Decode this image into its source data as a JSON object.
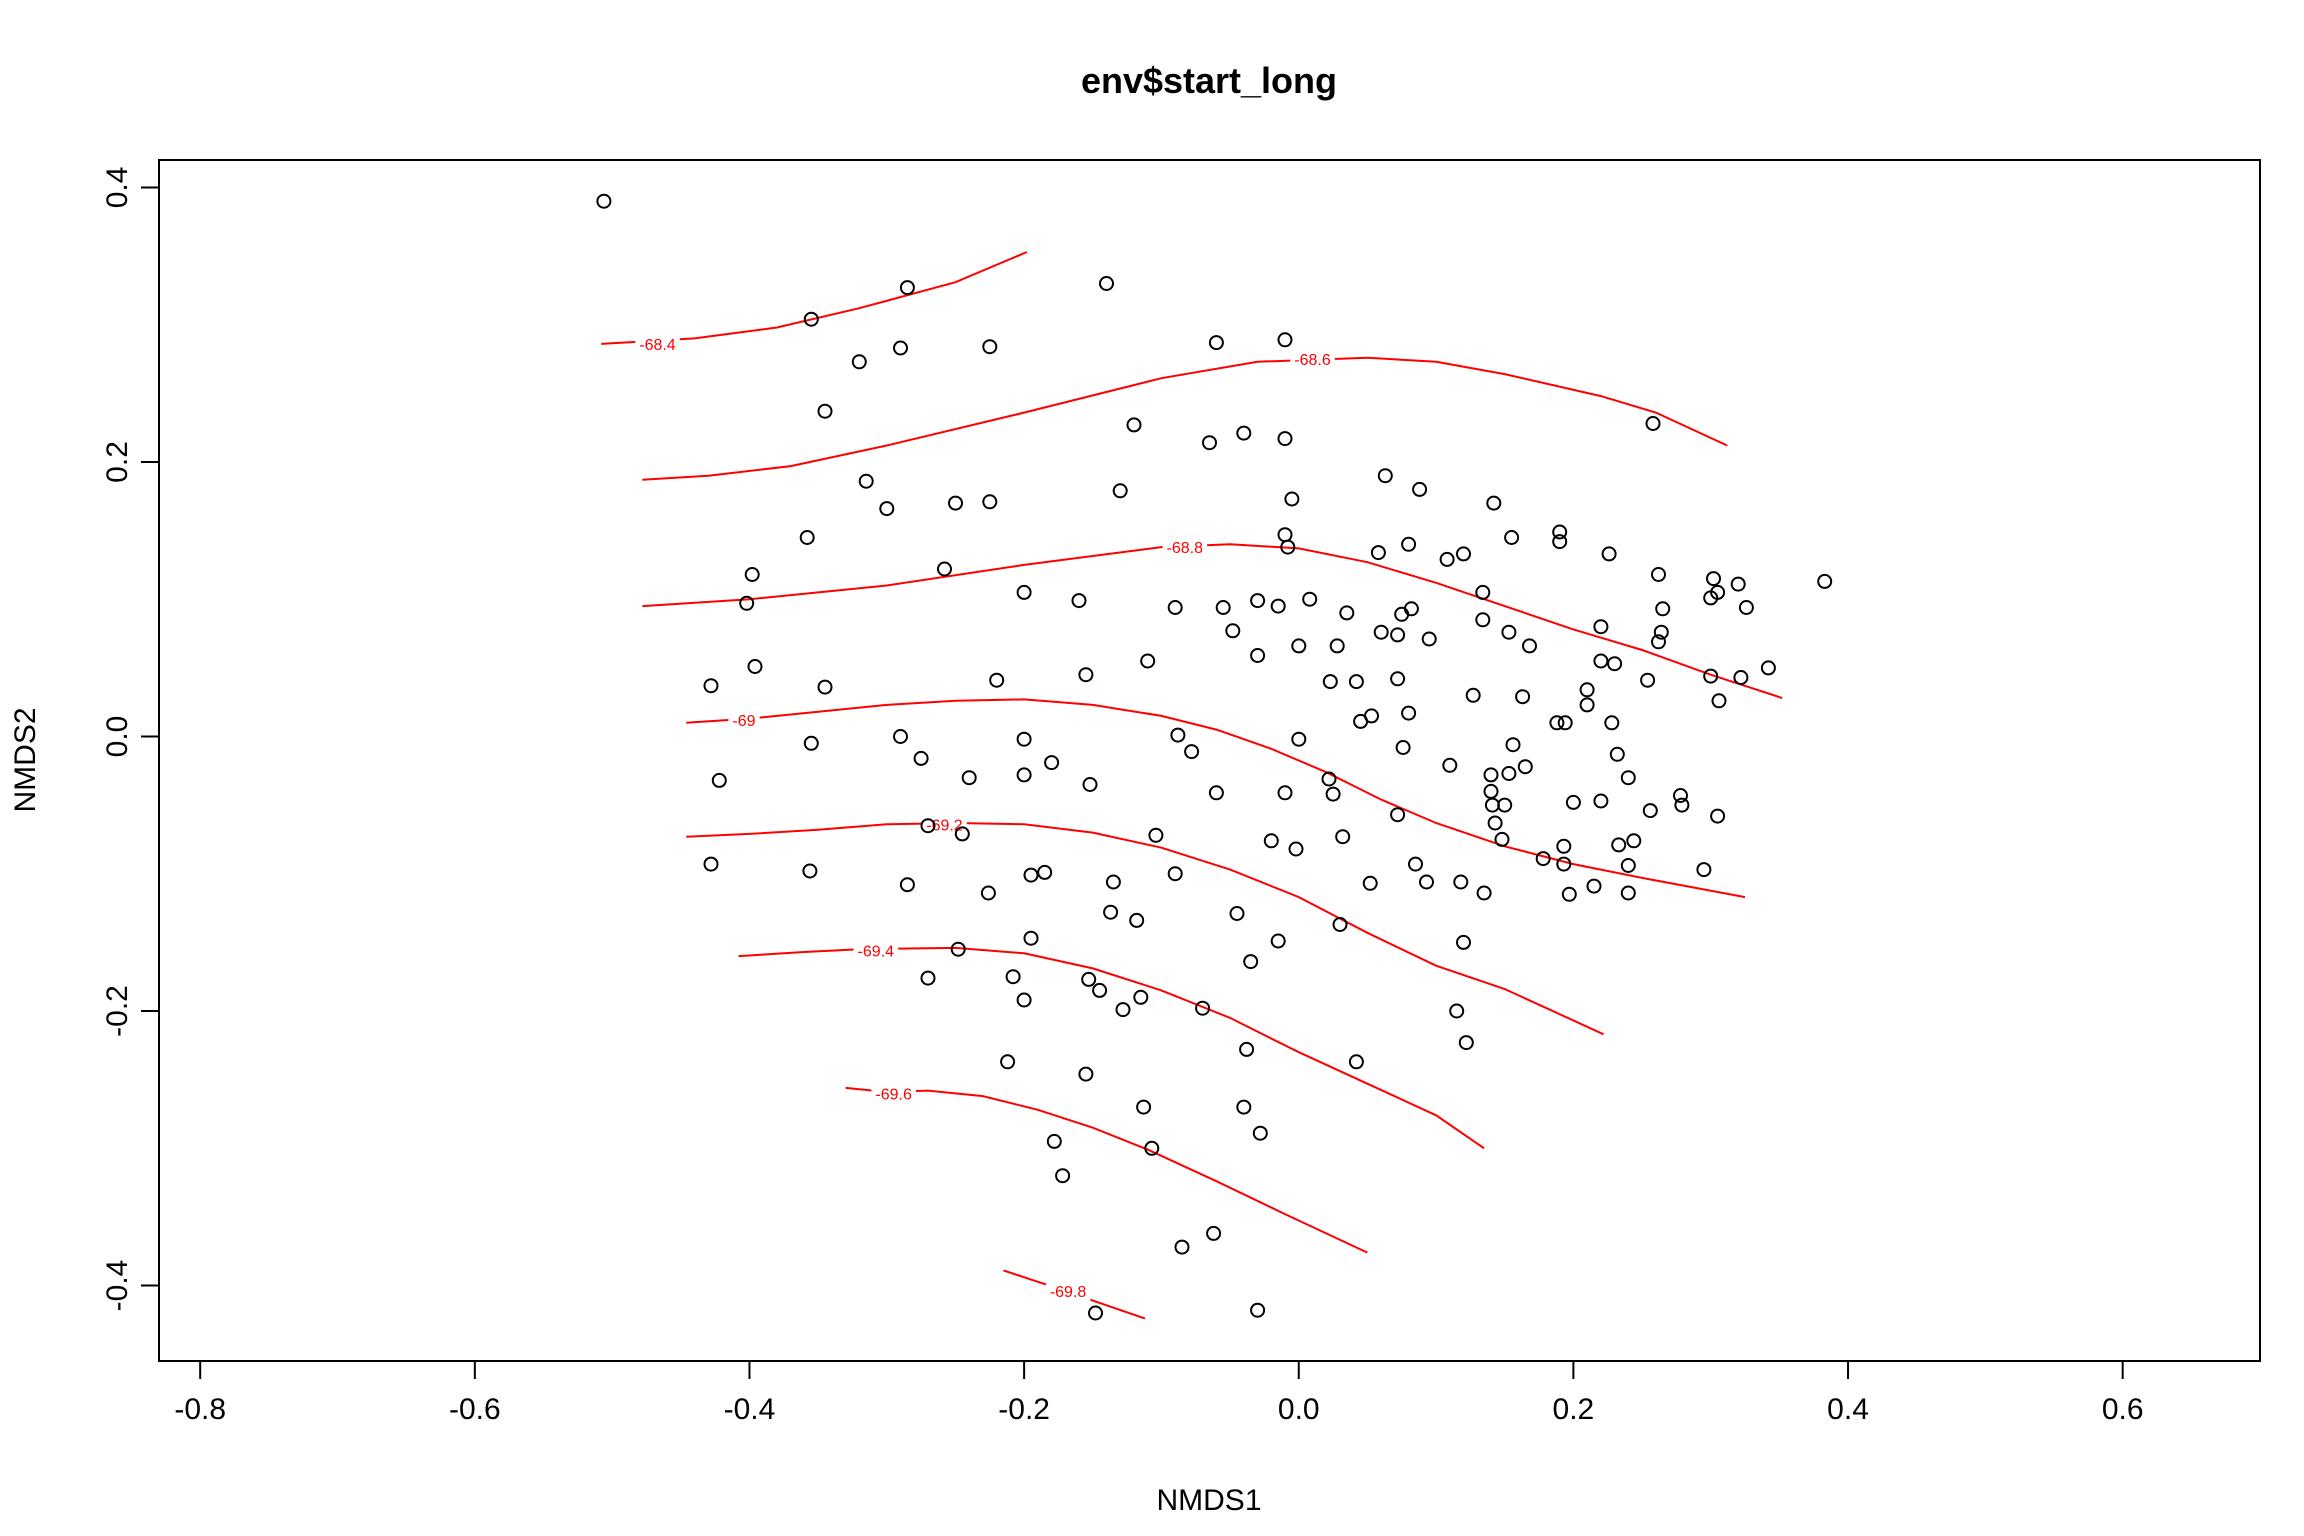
{
  "chart_data": {
    "type": "scatter",
    "title": "env$start_long",
    "xlabel": "NMDS1",
    "ylabel": "NMDS2",
    "xlim": [
      -0.83,
      0.7
    ],
    "ylim": [
      -0.455,
      0.42
    ],
    "x_ticks": [
      -0.8,
      -0.6,
      -0.4,
      -0.2,
      0.0,
      0.2,
      0.4,
      0.6
    ],
    "x_tick_labels": [
      "-0.8",
      "-0.6",
      "-0.4",
      "-0.2",
      "0.0",
      "0.2",
      "0.4",
      "0.6"
    ],
    "y_ticks": [
      -0.4,
      -0.2,
      0.0,
      0.2,
      0.4
    ],
    "y_tick_labels": [
      "-0.4",
      "-0.2",
      "0.0",
      "0.2",
      "0.4"
    ],
    "grid": false,
    "legend": "none",
    "point_color": "#000000",
    "contour_color": "#ff0000",
    "points": [
      [
        -0.506,
        0.39
      ],
      [
        -0.14,
        0.33
      ],
      [
        -0.285,
        0.327
      ],
      [
        -0.355,
        0.304
      ],
      [
        -0.32,
        0.273
      ],
      [
        -0.29,
        0.283
      ],
      [
        -0.225,
        0.284
      ],
      [
        -0.06,
        0.287
      ],
      [
        -0.01,
        0.289
      ],
      [
        -0.345,
        0.237
      ],
      [
        -0.12,
        0.227
      ],
      [
        -0.04,
        0.221
      ],
      [
        -0.01,
        0.217
      ],
      [
        -0.065,
        0.214
      ],
      [
        0.258,
        0.228
      ],
      [
        -0.315,
        0.186
      ],
      [
        -0.3,
        0.166
      ],
      [
        -0.25,
        0.17
      ],
      [
        -0.225,
        0.171
      ],
      [
        -0.13,
        0.179
      ],
      [
        -0.005,
        0.173
      ],
      [
        0.063,
        0.19
      ],
      [
        0.088,
        0.18
      ],
      [
        0.142,
        0.17
      ],
      [
        -0.358,
        0.145
      ],
      [
        -0.01,
        0.147
      ],
      [
        -0.008,
        0.138
      ],
      [
        0.058,
        0.134
      ],
      [
        0.08,
        0.14
      ],
      [
        0.108,
        0.129
      ],
      [
        0.12,
        0.133
      ],
      [
        0.155,
        0.145
      ],
      [
        0.19,
        0.149
      ],
      [
        0.19,
        0.142
      ],
      [
        0.226,
        0.133
      ],
      [
        -0.398,
        0.118
      ],
      [
        -0.258,
        0.122
      ],
      [
        0.262,
        0.118
      ],
      [
        0.302,
        0.115
      ],
      [
        0.32,
        0.111
      ],
      [
        0.383,
        0.113
      ],
      [
        -0.402,
        0.097
      ],
      [
        -0.2,
        0.105
      ],
      [
        -0.16,
        0.099
      ],
      [
        -0.09,
        0.094
      ],
      [
        -0.055,
        0.094
      ],
      [
        -0.03,
        0.099
      ],
      [
        -0.015,
        0.095
      ],
      [
        0.008,
        0.1
      ],
      [
        0.035,
        0.09
      ],
      [
        0.075,
        0.089
      ],
      [
        0.082,
        0.093
      ],
      [
        0.134,
        0.105
      ],
      [
        0.3,
        0.101
      ],
      [
        0.305,
        0.105
      ],
      [
        0.326,
        0.094
      ],
      [
        0.265,
        0.093
      ],
      [
        0.134,
        0.085
      ],
      [
        -0.048,
        0.077
      ],
      [
        -0.03,
        0.059
      ],
      [
        0.0,
        0.066
      ],
      [
        0.028,
        0.066
      ],
      [
        0.06,
        0.076
      ],
      [
        0.072,
        0.074
      ],
      [
        0.095,
        0.071
      ],
      [
        0.153,
        0.076
      ],
      [
        0.168,
        0.066
      ],
      [
        0.22,
        0.08
      ],
      [
        0.264,
        0.076
      ],
      [
        0.262,
        0.069
      ],
      [
        -0.396,
        0.051
      ],
      [
        -0.11,
        0.055
      ],
      [
        -0.155,
        0.045
      ],
      [
        0.22,
        0.055
      ],
      [
        0.23,
        0.053
      ],
      [
        0.342,
        0.05
      ],
      [
        -0.428,
        0.037
      ],
      [
        -0.345,
        0.036
      ],
      [
        -0.22,
        0.041
      ],
      [
        0.023,
        0.04
      ],
      [
        0.042,
        0.04
      ],
      [
        0.072,
        0.042
      ],
      [
        0.254,
        0.041
      ],
      [
        0.3,
        0.044
      ],
      [
        0.322,
        0.043
      ],
      [
        0.21,
        0.034
      ],
      [
        0.306,
        0.026
      ],
      [
        0.127,
        0.03
      ],
      [
        0.163,
        0.029
      ],
      [
        0.21,
        0.023
      ],
      [
        0.045,
        0.011
      ],
      [
        0.053,
        0.015
      ],
      [
        0.08,
        0.017
      ],
      [
        0.188,
        0.01
      ],
      [
        0.194,
        0.01
      ],
      [
        0.228,
        0.01
      ],
      [
        -0.355,
        -0.005
      ],
      [
        -0.29,
        0.0
      ],
      [
        -0.2,
        -0.002
      ],
      [
        -0.088,
        0.001
      ],
      [
        -0.078,
        -0.011
      ],
      [
        0.0,
        -0.002
      ],
      [
        0.076,
        -0.008
      ],
      [
        0.156,
        -0.006
      ],
      [
        -0.422,
        -0.032
      ],
      [
        -0.275,
        -0.016
      ],
      [
        -0.24,
        -0.03
      ],
      [
        -0.2,
        -0.028
      ],
      [
        -0.18,
        -0.019
      ],
      [
        -0.152,
        -0.035
      ],
      [
        -0.06,
        -0.041
      ],
      [
        -0.01,
        -0.041
      ],
      [
        0.022,
        -0.031
      ],
      [
        0.025,
        -0.042
      ],
      [
        0.11,
        -0.021
      ],
      [
        0.14,
        -0.028
      ],
      [
        0.153,
        -0.027
      ],
      [
        0.165,
        -0.022
      ],
      [
        0.232,
        -0.013
      ],
      [
        0.24,
        -0.03
      ],
      [
        0.256,
        -0.054
      ],
      [
        0.278,
        -0.043
      ],
      [
        0.14,
        -0.04
      ],
      [
        0.141,
        -0.05
      ],
      [
        0.15,
        -0.05
      ],
      [
        0.2,
        -0.048
      ],
      [
        0.22,
        -0.047
      ],
      [
        0.143,
        -0.063
      ],
      [
        0.148,
        -0.075
      ],
      [
        0.072,
        -0.057
      ],
      [
        0.305,
        -0.058
      ],
      [
        0.279,
        -0.05
      ],
      [
        -0.27,
        -0.065
      ],
      [
        -0.245,
        -0.071
      ],
      [
        -0.104,
        -0.072
      ],
      [
        -0.02,
        -0.076
      ],
      [
        -0.002,
        -0.082
      ],
      [
        0.032,
        -0.073
      ],
      [
        0.193,
        -0.08
      ],
      [
        0.233,
        -0.079
      ],
      [
        0.244,
        -0.076
      ],
      [
        -0.428,
        -0.093
      ],
      [
        -0.356,
        -0.098
      ],
      [
        -0.195,
        -0.101
      ],
      [
        -0.185,
        -0.099
      ],
      [
        -0.09,
        -0.1
      ],
      [
        0.085,
        -0.093
      ],
      [
        0.178,
        -0.089
      ],
      [
        0.193,
        -0.093
      ],
      [
        -0.285,
        -0.108
      ],
      [
        -0.226,
        -0.114
      ],
      [
        -0.135,
        -0.106
      ],
      [
        0.052,
        -0.107
      ],
      [
        0.093,
        -0.106
      ],
      [
        0.118,
        -0.106
      ],
      [
        0.135,
        -0.114
      ],
      [
        0.197,
        -0.115
      ],
      [
        0.215,
        -0.109
      ],
      [
        0.24,
        -0.094
      ],
      [
        0.24,
        -0.114
      ],
      [
        0.295,
        -0.097
      ],
      [
        -0.137,
        -0.128
      ],
      [
        -0.118,
        -0.134
      ],
      [
        -0.045,
        -0.129
      ],
      [
        0.03,
        -0.137
      ],
      [
        -0.195,
        -0.147
      ],
      [
        -0.248,
        -0.155
      ],
      [
        -0.015,
        -0.149
      ],
      [
        0.12,
        -0.15
      ],
      [
        -0.27,
        -0.176
      ],
      [
        -0.208,
        -0.175
      ],
      [
        -0.2,
        -0.192
      ],
      [
        -0.153,
        -0.177
      ],
      [
        -0.145,
        -0.185
      ],
      [
        -0.128,
        -0.199
      ],
      [
        -0.115,
        -0.19
      ],
      [
        -0.07,
        -0.198
      ],
      [
        -0.035,
        -0.164
      ],
      [
        0.115,
        -0.2
      ],
      [
        -0.212,
        -0.237
      ],
      [
        -0.155,
        -0.246
      ],
      [
        -0.038,
        -0.228
      ],
      [
        0.042,
        -0.237
      ],
      [
        0.122,
        -0.223
      ],
      [
        -0.113,
        -0.27
      ],
      [
        -0.04,
        -0.27
      ],
      [
        -0.178,
        -0.295
      ],
      [
        -0.107,
        -0.3
      ],
      [
        -0.028,
        -0.289
      ],
      [
        -0.172,
        -0.32
      ],
      [
        -0.085,
        -0.372
      ],
      [
        -0.062,
        -0.362
      ],
      [
        -0.148,
        -0.42
      ],
      [
        -0.03,
        -0.418
      ]
    ],
    "contours": [
      {
        "level": "-68.4",
        "label_at": [
          -0.467,
          0.286
        ],
        "line": [
          [
            -0.508,
            0.286
          ],
          [
            -0.44,
            0.29
          ],
          [
            -0.38,
            0.298
          ],
          [
            -0.32,
            0.312
          ],
          [
            -0.25,
            0.331
          ],
          [
            -0.198,
            0.353
          ]
        ]
      },
      {
        "level": "-68.6",
        "label_at": [
          0.01,
          0.275
        ],
        "line": [
          [
            -0.478,
            0.187
          ],
          [
            -0.43,
            0.19
          ],
          [
            -0.37,
            0.197
          ],
          [
            -0.3,
            0.212
          ],
          [
            -0.2,
            0.236
          ],
          [
            -0.1,
            0.261
          ],
          [
            -0.03,
            0.273
          ],
          [
            0.05,
            0.276
          ],
          [
            0.1,
            0.273
          ],
          [
            0.15,
            0.264
          ],
          [
            0.22,
            0.248
          ],
          [
            0.26,
            0.236
          ],
          [
            0.312,
            0.212
          ]
        ]
      },
      {
        "level": "-68.8",
        "label_at": [
          -0.083,
          0.138
        ],
        "line": [
          [
            -0.478,
            0.095
          ],
          [
            -0.4,
            0.1
          ],
          [
            -0.3,
            0.11
          ],
          [
            -0.2,
            0.125
          ],
          [
            -0.1,
            0.138
          ],
          [
            -0.05,
            0.14
          ],
          [
            0.0,
            0.137
          ],
          [
            0.05,
            0.127
          ],
          [
            0.1,
            0.112
          ],
          [
            0.15,
            0.095
          ],
          [
            0.2,
            0.078
          ],
          [
            0.25,
            0.063
          ],
          [
            0.3,
            0.045
          ],
          [
            0.352,
            0.028
          ]
        ]
      },
      {
        "level": "-69",
        "label_at": [
          -0.404,
          0.012
        ],
        "line": [
          [
            -0.446,
            0.01
          ],
          [
            -0.4,
            0.013
          ],
          [
            -0.35,
            0.018
          ],
          [
            -0.3,
            0.023
          ],
          [
            -0.25,
            0.026
          ],
          [
            -0.2,
            0.027
          ],
          [
            -0.15,
            0.023
          ],
          [
            -0.1,
            0.015
          ],
          [
            -0.06,
            0.005
          ],
          [
            -0.02,
            -0.009
          ],
          [
            0.02,
            -0.026
          ],
          [
            0.06,
            -0.046
          ],
          [
            0.1,
            -0.063
          ],
          [
            0.15,
            -0.08
          ],
          [
            0.2,
            -0.093
          ],
          [
            0.25,
            -0.103
          ],
          [
            0.325,
            -0.117
          ]
        ]
      },
      {
        "level": "-69.2",
        "label_at": [
          -0.258,
          -0.064
        ],
        "line": [
          [
            -0.446,
            -0.073
          ],
          [
            -0.4,
            -0.071
          ],
          [
            -0.35,
            -0.068
          ],
          [
            -0.3,
            -0.064
          ],
          [
            -0.25,
            -0.063
          ],
          [
            -0.2,
            -0.064
          ],
          [
            -0.15,
            -0.07
          ],
          [
            -0.1,
            -0.081
          ],
          [
            -0.05,
            -0.097
          ],
          [
            0.0,
            -0.117
          ],
          [
            0.05,
            -0.143
          ],
          [
            0.1,
            -0.167
          ],
          [
            0.15,
            -0.184
          ],
          [
            0.222,
            -0.217
          ]
        ]
      },
      {
        "level": "-69.4",
        "label_at": [
          -0.308,
          -0.156
        ],
        "line": [
          [
            -0.408,
            -0.16
          ],
          [
            -0.36,
            -0.157
          ],
          [
            -0.32,
            -0.155
          ],
          [
            -0.25,
            -0.154
          ],
          [
            -0.2,
            -0.158
          ],
          [
            -0.15,
            -0.169
          ],
          [
            -0.1,
            -0.185
          ],
          [
            -0.05,
            -0.205
          ],
          [
            0.0,
            -0.23
          ],
          [
            0.05,
            -0.253
          ],
          [
            0.1,
            -0.276
          ],
          [
            0.135,
            -0.3
          ]
        ]
      },
      {
        "level": "-69.6",
        "label_at": [
          -0.295,
          -0.26
        ],
        "line": [
          [
            -0.33,
            -0.256
          ],
          [
            -0.3,
            -0.259
          ],
          [
            -0.27,
            -0.258
          ],
          [
            -0.23,
            -0.262
          ],
          [
            -0.19,
            -0.272
          ],
          [
            -0.15,
            -0.285
          ],
          [
            -0.11,
            -0.301
          ],
          [
            -0.06,
            -0.324
          ],
          [
            -0.01,
            -0.348
          ],
          [
            0.05,
            -0.376
          ]
        ]
      },
      {
        "level": "-69.8",
        "label_at": [
          -0.168,
          -0.404
        ],
        "line": [
          [
            -0.215,
            -0.389
          ],
          [
            -0.185,
            -0.399
          ],
          [
            -0.15,
            -0.411
          ],
          [
            -0.112,
            -0.424
          ]
        ]
      }
    ]
  }
}
